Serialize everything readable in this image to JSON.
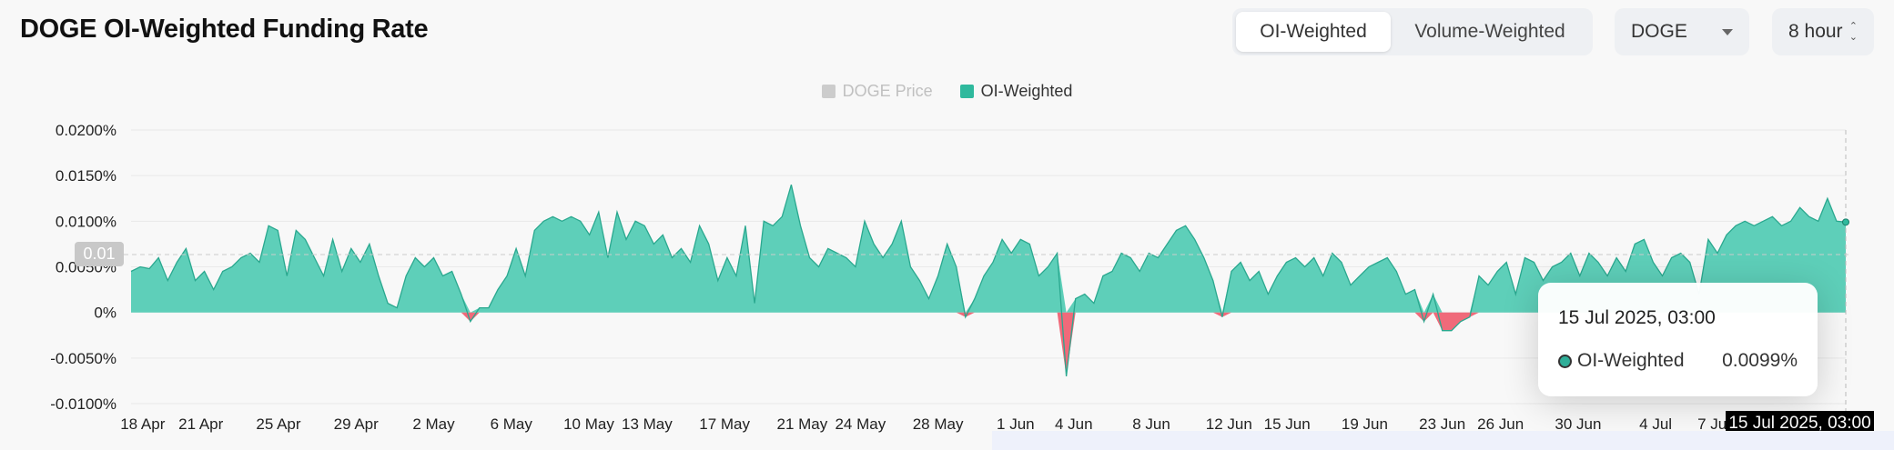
{
  "header": {
    "title": "DOGE OI-Weighted Funding Rate",
    "tabs": [
      {
        "label": "OI-Weighted",
        "active": true
      },
      {
        "label": "Volume-Weighted",
        "active": false
      }
    ],
    "coin_select": "DOGE",
    "interval_select": "8 hour"
  },
  "legend": {
    "items": [
      {
        "label": "DOGE Price",
        "color": "#cccccc",
        "enabled": false
      },
      {
        "label": "OI-Weighted",
        "color": "#2fb99d",
        "enabled": true
      }
    ]
  },
  "tooltip": {
    "date": "15 Jul 2025, 03:00",
    "series": "OI-Weighted",
    "value": "0.0099%"
  },
  "crosshair": {
    "x_label": "15 Jul 2025, 03:00",
    "y_label": "0.01"
  },
  "chart_data": {
    "type": "area",
    "ylabel": "",
    "xlabel": "",
    "ylim": [
      -0.0001,
      0.0002
    ],
    "y_ticks": [
      {
        "value": 0.0002,
        "label": "0.0200%"
      },
      {
        "value": 0.00015,
        "label": "0.0150%"
      },
      {
        "value": 0.0001,
        "label": "0.0100%"
      },
      {
        "value": 5e-05,
        "label": "0.0050%"
      },
      {
        "value": 0,
        "label": "0%"
      },
      {
        "value": -5e-05,
        "label": "-0.0050%"
      },
      {
        "value": -0.0001,
        "label": "-0.0100%"
      }
    ],
    "x_ticks": [
      "18 Apr",
      "21 Apr",
      "25 Apr",
      "29 Apr",
      "2 May",
      "6 May",
      "10 May",
      "13 May",
      "17 May",
      "21 May",
      "24 May",
      "28 May",
      "1 Jun",
      "4 Jun",
      "8 Jun",
      "12 Jun",
      "15 Jun",
      "19 Jun",
      "23 Jun",
      "26 Jun",
      "30 Jun",
      "4 Jul",
      "7 Jul"
    ],
    "x_tick_index": [
      0.6,
      3.6,
      7.6,
      11.6,
      15.6,
      19.6,
      23.6,
      26.6,
      30.6,
      34.6,
      37.6,
      41.6,
      45.6,
      48.6,
      52.6,
      56.6,
      59.6,
      63.6,
      67.6,
      70.6,
      74.6,
      78.6,
      81.6
    ],
    "series": [
      {
        "name": "OI-Weighted",
        "positive_color": "#5ecfb9",
        "negative_color": "#f06a7a",
        "x_range_days": [
          0,
          88.4
        ],
        "values": [
          4.5e-05,
          5e-05,
          4.8e-05,
          6e-05,
          3.5e-05,
          5.5e-05,
          7e-05,
          3.5e-05,
          4.5e-05,
          2.5e-05,
          4.5e-05,
          5e-05,
          6e-05,
          6.5e-05,
          5.5e-05,
          9.5e-05,
          9e-05,
          4e-05,
          9e-05,
          8e-05,
          6e-05,
          4e-05,
          8e-05,
          4.5e-05,
          7e-05,
          5.5e-05,
          7.5e-05,
          4e-05,
          1e-05,
          5e-06,
          4e-05,
          6e-05,
          5e-05,
          6e-05,
          4e-05,
          4.5e-05,
          2e-05,
          -1e-05,
          5e-06,
          5e-06,
          2.5e-05,
          4e-05,
          7e-05,
          4e-05,
          9e-05,
          0.0001,
          0.000105,
          0.0001,
          0.000105,
          0.0001,
          8.5e-05,
          0.00011,
          6e-05,
          0.00011,
          8e-05,
          0.0001,
          9.5e-05,
          7.5e-05,
          8.5e-05,
          6e-05,
          7e-05,
          5.5e-05,
          9.5e-05,
          7.5e-05,
          3.5e-05,
          6e-05,
          4e-05,
          9.5e-05,
          1e-05,
          0.0001,
          9.5e-05,
          0.000105,
          0.00014,
          9.5e-05,
          6e-05,
          5e-05,
          7e-05,
          6.5e-05,
          6e-05,
          5e-05,
          0.0001,
          7.5e-05,
          6e-05,
          7.5e-05,
          0.0001,
          5e-05,
          3.5e-05,
          1.5e-05,
          4e-05,
          7.5e-05,
          5e-05,
          -5e-06,
          1.5e-05,
          4e-05,
          5.5e-05,
          8e-05,
          6.5e-05,
          8e-05,
          7.5e-05,
          4e-05,
          5e-05,
          6.5e-05,
          -7e-05,
          1.5e-05,
          2e-05,
          1e-05,
          4e-05,
          4.5e-05,
          6.5e-05,
          6e-05,
          4.5e-05,
          6.5e-05,
          6e-05,
          7.5e-05,
          9e-05,
          9.5e-05,
          8e-05,
          6e-05,
          3.5e-05,
          -5e-06,
          4.5e-05,
          5.5e-05,
          3.5e-05,
          4.5e-05,
          2e-05,
          4e-05,
          5.5e-05,
          6e-05,
          5e-05,
          6e-05,
          4e-05,
          6.5e-05,
          5.5e-05,
          3e-05,
          4e-05,
          5e-05,
          5.5e-05,
          6e-05,
          4.5e-05,
          2e-05,
          2.5e-05,
          -1e-05,
          2e-05,
          -2e-05,
          -2e-05,
          -1e-05,
          -5e-06,
          4e-05,
          3e-05,
          4.5e-05,
          5.5e-05,
          2e-05,
          6e-05,
          5.5e-05,
          3.5e-05,
          5e-05,
          5.5e-05,
          6.5e-05,
          4e-05,
          6.5e-05,
          5.5e-05,
          4e-05,
          6e-05,
          4.5e-05,
          7.5e-05,
          8e-05,
          5.5e-05,
          4e-05,
          6e-05,
          6.5e-05,
          5.5e-05,
          2e-05,
          8e-05,
          6.5e-05,
          8.5e-05,
          9.5e-05,
          0.0001,
          9.5e-05,
          0.0001,
          0.000105,
          9.5e-05,
          0.0001,
          0.000115,
          0.000105,
          0.0001,
          0.000125,
          0.0001,
          9.9e-05
        ]
      }
    ],
    "grid": true,
    "legend_position": "top-center"
  }
}
